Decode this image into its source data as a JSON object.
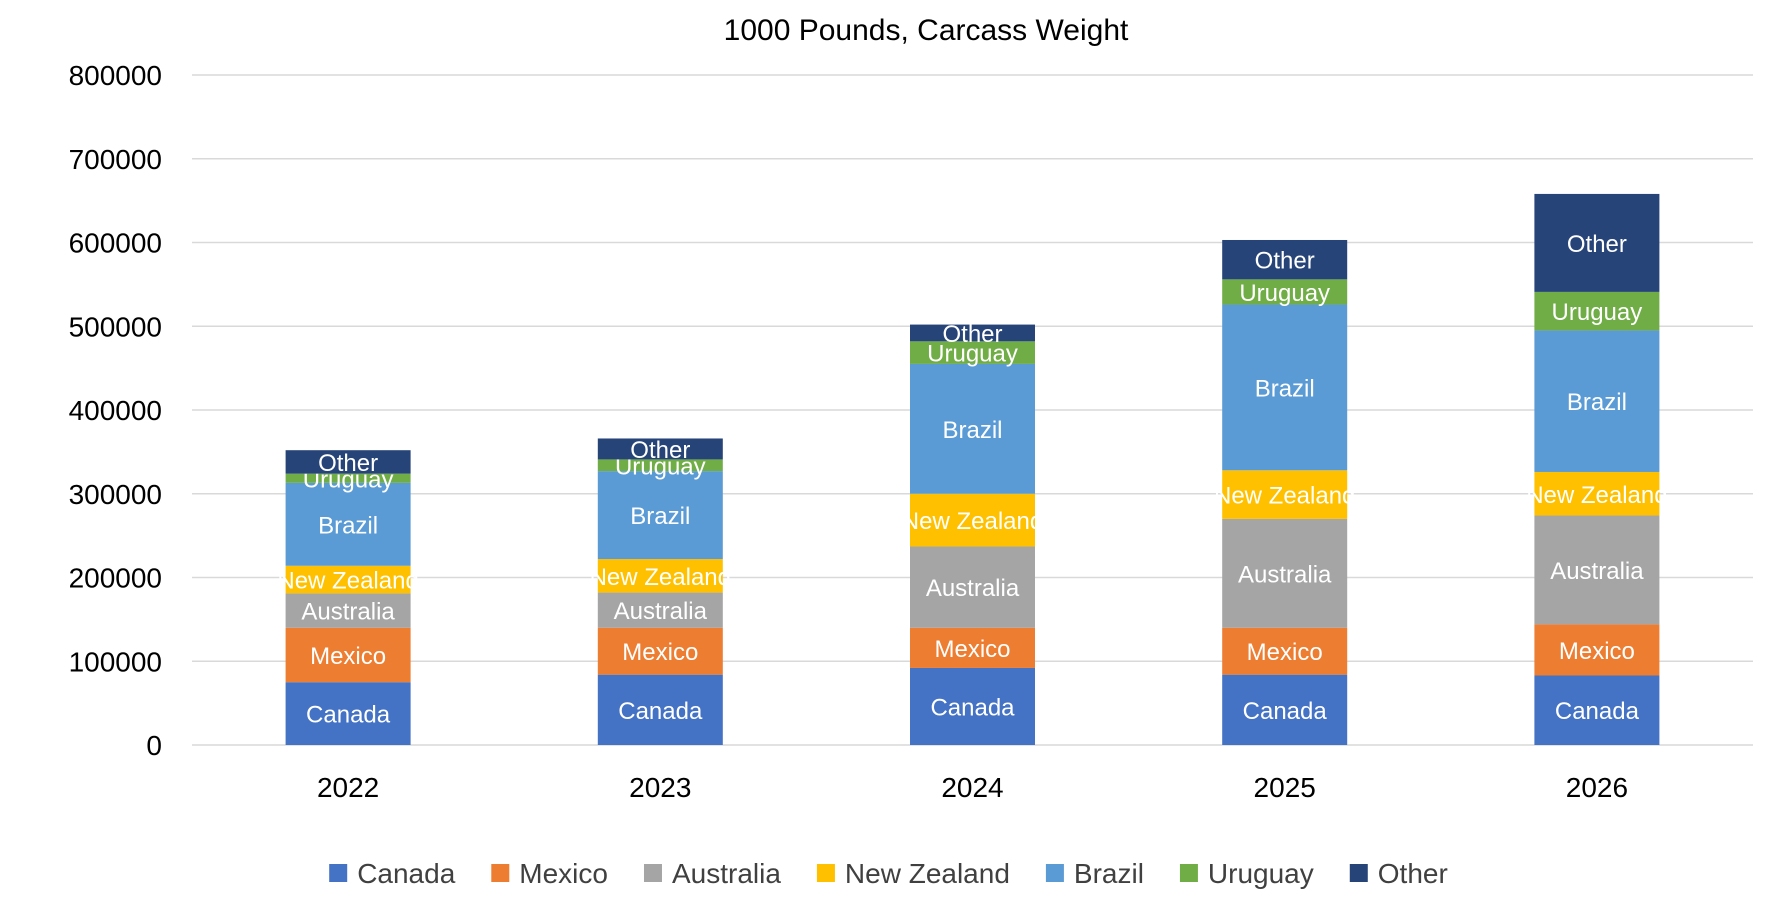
{
  "chart_data": {
    "type": "bar",
    "stacked": true,
    "subtitle": "1000 Pounds, Carcass Weight",
    "xlabel": "",
    "ylabel": "",
    "categories": [
      "2022",
      "2023",
      "2024",
      "2025",
      "2026"
    ],
    "ylim": [
      0,
      800000
    ],
    "yticks": [
      "0",
      "100000",
      "200000",
      "300000",
      "400000",
      "500000",
      "600000",
      "700000",
      "800000"
    ],
    "grid": true,
    "legend_position": "bottom",
    "series": [
      {
        "name": "Canada",
        "color": "#4472C4",
        "values": [
          75000,
          84000,
          92000,
          84000,
          83000
        ]
      },
      {
        "name": "Mexico",
        "color": "#ED7D31",
        "values": [
          65000,
          56000,
          48000,
          56000,
          61000
        ]
      },
      {
        "name": "Australia",
        "color": "#A5A5A5",
        "values": [
          41000,
          42000,
          97000,
          130000,
          130000
        ]
      },
      {
        "name": "New Zealand",
        "color": "#FFC000",
        "values": [
          33000,
          40000,
          63000,
          58000,
          52000
        ]
      },
      {
        "name": "Brazil",
        "color": "#5B9BD5",
        "values": [
          99000,
          105000,
          155000,
          198000,
          169000
        ]
      },
      {
        "name": "Uruguay",
        "color": "#70AD47",
        "values": [
          11000,
          14000,
          27000,
          30000,
          46000
        ]
      },
      {
        "name": "Other",
        "color": "#264478",
        "values": [
          28000,
          25000,
          20000,
          47000,
          117000
        ]
      }
    ]
  }
}
